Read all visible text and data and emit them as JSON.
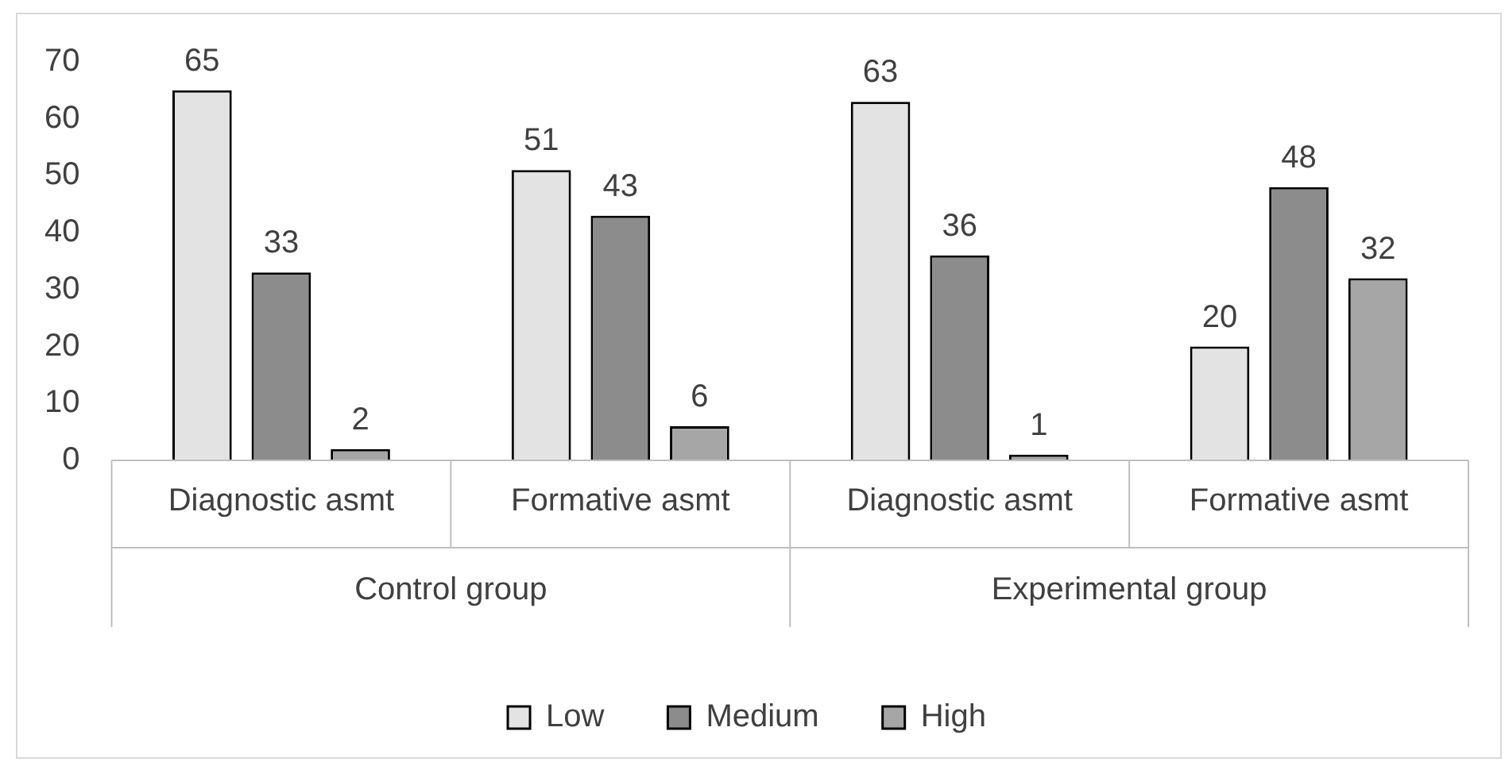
{
  "chart_data": {
    "type": "bar",
    "categories": [
      "Diagnostic asmt",
      "Formative asmt",
      "Diagnostic asmt",
      "Formative asmt"
    ],
    "series": [
      {
        "name": "Low",
        "color": "#e3e3e3",
        "values": [
          65,
          51,
          63,
          20
        ]
      },
      {
        "name": "Medium",
        "color": "#8c8c8c",
        "values": [
          33,
          43,
          36,
          48
        ]
      },
      {
        "name": "High",
        "color": "#a6a6a6",
        "values": [
          2,
          6,
          1,
          32
        ]
      }
    ],
    "ylim": [
      0,
      70
    ],
    "yticks": [
      0,
      10,
      20,
      30,
      40,
      50,
      60,
      70
    ],
    "grid": false,
    "legend": "bottom",
    "data_labels": true,
    "annotations": [
      "Control group",
      "Experimental group"
    ]
  }
}
